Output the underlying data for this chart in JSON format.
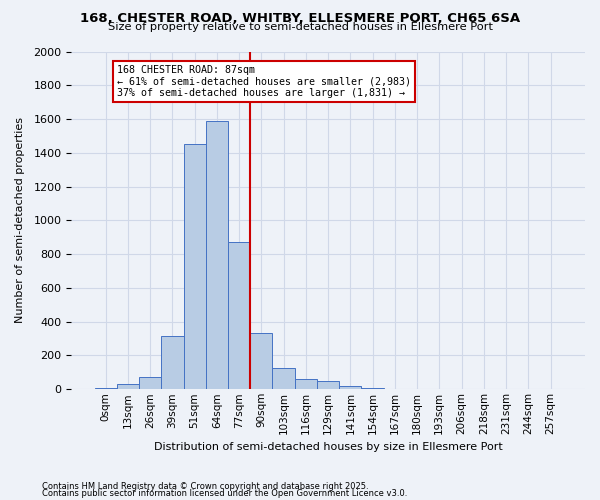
{
  "title": "168, CHESTER ROAD, WHITBY, ELLESMERE PORT, CH65 6SA",
  "subtitle": "Size of property relative to semi-detached houses in Ellesmere Port",
  "xlabel": "Distribution of semi-detached houses by size in Ellesmere Port",
  "ylabel": "Number of semi-detached properties",
  "footnote1": "Contains HM Land Registry data © Crown copyright and database right 2025.",
  "footnote2": "Contains public sector information licensed under the Open Government Licence v3.0.",
  "bin_labels": [
    "0sqm",
    "13sqm",
    "26sqm",
    "39sqm",
    "51sqm",
    "64sqm",
    "77sqm",
    "90sqm",
    "103sqm",
    "116sqm",
    "129sqm",
    "141sqm",
    "154sqm",
    "167sqm",
    "180sqm",
    "193sqm",
    "206sqm",
    "218sqm",
    "231sqm",
    "244sqm",
    "257sqm"
  ],
  "bar_values": [
    10,
    30,
    75,
    315,
    1450,
    1590,
    870,
    335,
    125,
    60,
    50,
    20,
    5,
    0,
    0,
    0,
    0,
    0,
    0,
    0,
    0
  ],
  "bar_color": "#b8cce4",
  "bar_edge_color": "#4472c4",
  "grid_color": "#d0d8e8",
  "background_color": "#eef2f8",
  "property_line_x": 6.5,
  "annotation_text1": "168 CHESTER ROAD: 87sqm",
  "annotation_text2": "← 61% of semi-detached houses are smaller (2,983)",
  "annotation_text3": "37% of semi-detached houses are larger (1,831) →",
  "annotation_box_color": "#ffffff",
  "annotation_border_color": "#cc0000",
  "vline_color": "#cc0000",
  "ylim": [
    0,
    2000
  ],
  "yticks": [
    0,
    200,
    400,
    600,
    800,
    1000,
    1200,
    1400,
    1600,
    1800,
    2000
  ]
}
